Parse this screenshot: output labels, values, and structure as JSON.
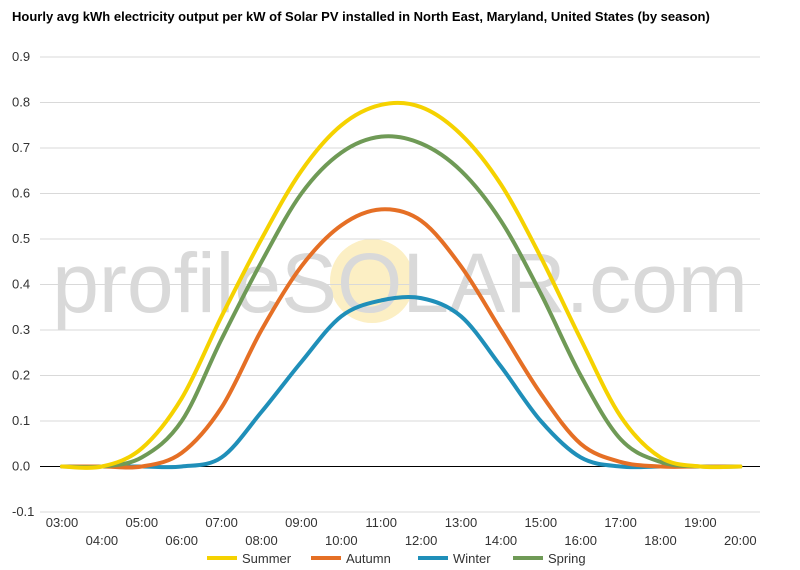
{
  "chart_data": {
    "type": "line",
    "title": "Hourly avg kWh electricity output per kW of Solar PV installed in North East, Maryland, United States (by season)",
    "xlabel": "",
    "ylabel": "",
    "ylim": [
      -0.1,
      0.9
    ],
    "yticks": [
      "-0.1",
      "0.0",
      "0.1",
      "0.2",
      "0.3",
      "0.4",
      "0.5",
      "0.6",
      "0.7",
      "0.8",
      "0.9"
    ],
    "x": [
      "03:00",
      "04:00",
      "05:00",
      "06:00",
      "07:00",
      "08:00",
      "09:00",
      "10:00",
      "11:00",
      "12:00",
      "13:00",
      "14:00",
      "15:00",
      "16:00",
      "17:00",
      "18:00",
      "19:00",
      "20:00"
    ],
    "grid": true,
    "legend_position": "bottom",
    "watermark": "profileSOLAR.com",
    "series": [
      {
        "name": "Summer",
        "color": "#f5d200",
        "values": [
          0.0,
          0.0,
          0.04,
          0.15,
          0.33,
          0.5,
          0.65,
          0.75,
          0.795,
          0.79,
          0.73,
          0.62,
          0.46,
          0.28,
          0.11,
          0.02,
          0.0,
          0.0
        ]
      },
      {
        "name": "Autumn",
        "color": "#e56f25",
        "values": [
          0.0,
          0.0,
          0.0,
          0.03,
          0.13,
          0.3,
          0.44,
          0.53,
          0.565,
          0.54,
          0.44,
          0.3,
          0.16,
          0.05,
          0.01,
          0.0,
          0.0,
          0.0
        ]
      },
      {
        "name": "Winter",
        "color": "#1f8fb9",
        "values": [
          0.0,
          0.0,
          0.0,
          0.0,
          0.02,
          0.12,
          0.23,
          0.33,
          0.365,
          0.37,
          0.33,
          0.22,
          0.1,
          0.02,
          0.0,
          0.0,
          0.0,
          0.0
        ]
      },
      {
        "name": "Spring",
        "color": "#6f9a56",
        "values": [
          0.0,
          0.0,
          0.02,
          0.1,
          0.28,
          0.45,
          0.6,
          0.69,
          0.725,
          0.71,
          0.65,
          0.54,
          0.38,
          0.2,
          0.06,
          0.01,
          0.0,
          0.0
        ]
      }
    ]
  }
}
